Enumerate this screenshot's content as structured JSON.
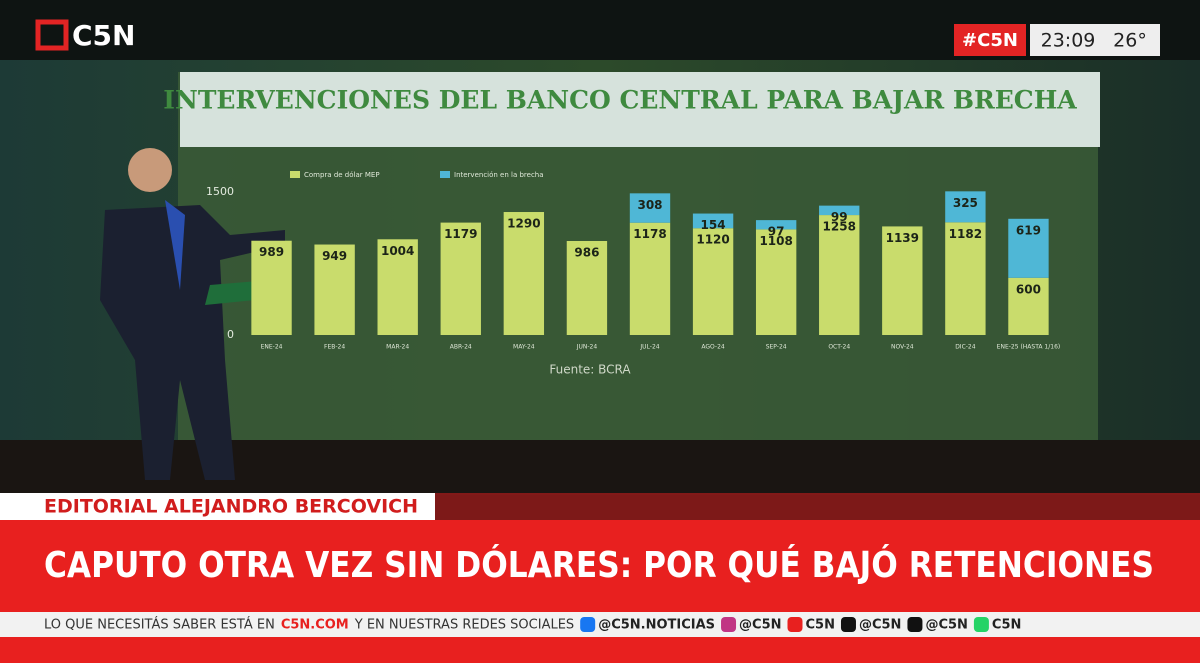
{
  "header": {
    "logo": "C5N",
    "hashtag": "#C5N",
    "time": "23:09",
    "temperature": "26°"
  },
  "chart_data": {
    "type": "bar",
    "stacked": true,
    "title": "INTERVENCIONES DEL BANCO CENTRAL PARA BAJAR BRECHA",
    "source": "Fuente: BCRA",
    "categories": [
      "ENE-24",
      "FEB-24",
      "MAR-24",
      "ABR-24",
      "MAY-24",
      "JUN-24",
      "JUL-24",
      "AGO-24",
      "SEP-24",
      "OCT-24",
      "NOV-24",
      "DIC-24",
      "ENE-25 (HASTA 1/16)"
    ],
    "series": [
      {
        "name": "Compra de dólar MEP",
        "color": "#c9dc6c",
        "values": [
          989,
          949,
          1004,
          1179,
          1290,
          986,
          1178,
          1120,
          1108,
          1258,
          1139,
          1182,
          600
        ]
      },
      {
        "name": "Intervención en la brecha",
        "color": "#4fb7d6",
        "values": [
          null,
          null,
          null,
          null,
          null,
          null,
          308,
          154,
          97,
          99,
          null,
          325,
          619
        ]
      }
    ],
    "ylim": [
      0,
      1500
    ],
    "yticks": [
      0,
      1500
    ],
    "grid": false
  },
  "lower_third": {
    "section": "EDITORIAL ALEJANDRO BERCOVICH",
    "headline": "CAPUTO OTRA VEZ SIN DÓLARES: POR QUÉ BAJÓ RETENCIONES"
  },
  "ticker": {
    "text": "LO QUE NECESITÁS SABER ESTÁ EN",
    "site": "C5N.COM",
    "text2": "Y EN NUESTRAS REDES SOCIALES",
    "handles": [
      "@C5N.NOTICIAS",
      "@C5N",
      "C5N",
      "@C5N",
      "@C5N",
      "C5N"
    ]
  }
}
